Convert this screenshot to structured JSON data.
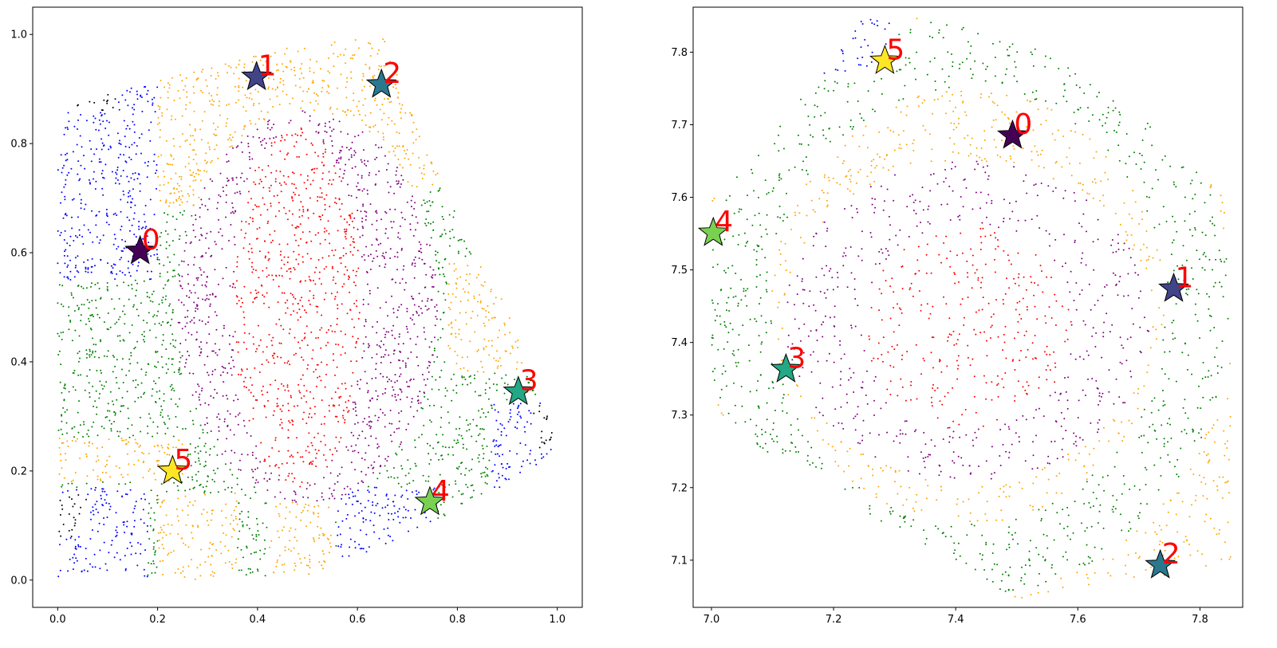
{
  "chart_data": [
    {
      "type": "scatter",
      "title": "",
      "xlabel": "",
      "ylabel": "",
      "xlim": [
        -0.05,
        1.05
      ],
      "ylim": [
        -0.05,
        1.05
      ],
      "xticks": [
        "0.0",
        "0.2",
        "0.4",
        "0.6",
        "0.8",
        "1.0"
      ],
      "yticks": [
        "0.0",
        "0.2",
        "0.4",
        "0.6",
        "0.8",
        "1.0"
      ],
      "grid": false,
      "label_color": "#ff0000",
      "region_colors": {
        "red": "#ff0000",
        "purple": "#800080",
        "orange": "#ffa500",
        "green": "#008000",
        "blue": "#0000ff",
        "black": "#000000"
      },
      "stars": [
        {
          "label": "0",
          "x": 0.165,
          "y": 0.603,
          "color": "#440154"
        },
        {
          "label": "1",
          "x": 0.398,
          "y": 0.922,
          "color": "#414487"
        },
        {
          "label": "2",
          "x": 0.648,
          "y": 0.908,
          "color": "#2a788e"
        },
        {
          "label": "3",
          "x": 0.922,
          "y": 0.345,
          "color": "#22a884"
        },
        {
          "label": "4",
          "x": 0.745,
          "y": 0.143,
          "color": "#7ad151"
        },
        {
          "label": "5",
          "x": 0.23,
          "y": 0.2,
          "color": "#fde725"
        }
      ]
    },
    {
      "type": "scatter",
      "title": "",
      "xlabel": "",
      "ylabel": "",
      "xlim": [
        6.97,
        7.87
      ],
      "ylim": [
        7.035,
        7.862
      ],
      "xticks": [
        "7.0",
        "7.2",
        "7.4",
        "7.6",
        "7.8"
      ],
      "yticks": [
        "7.1",
        "7.2",
        "7.3",
        "7.4",
        "7.5",
        "7.6",
        "7.7",
        "7.8"
      ],
      "grid": false,
      "label_color": "#ff0000",
      "region_colors": {
        "red": "#ff0000",
        "purple": "#800080",
        "orange": "#ffa500",
        "green": "#008000",
        "blue": "#0000ff"
      },
      "stars": [
        {
          "label": "0",
          "x": 7.493,
          "y": 7.685,
          "color": "#440154"
        },
        {
          "label": "1",
          "x": 7.757,
          "y": 7.474,
          "color": "#414487"
        },
        {
          "label": "2",
          "x": 7.735,
          "y": 7.093,
          "color": "#2a788e"
        },
        {
          "label": "3",
          "x": 7.122,
          "y": 7.363,
          "color": "#22a884"
        },
        {
          "label": "4",
          "x": 7.003,
          "y": 7.551,
          "color": "#7ad151"
        },
        {
          "label": "5",
          "x": 7.284,
          "y": 7.788,
          "color": "#fde725"
        }
      ]
    }
  ]
}
